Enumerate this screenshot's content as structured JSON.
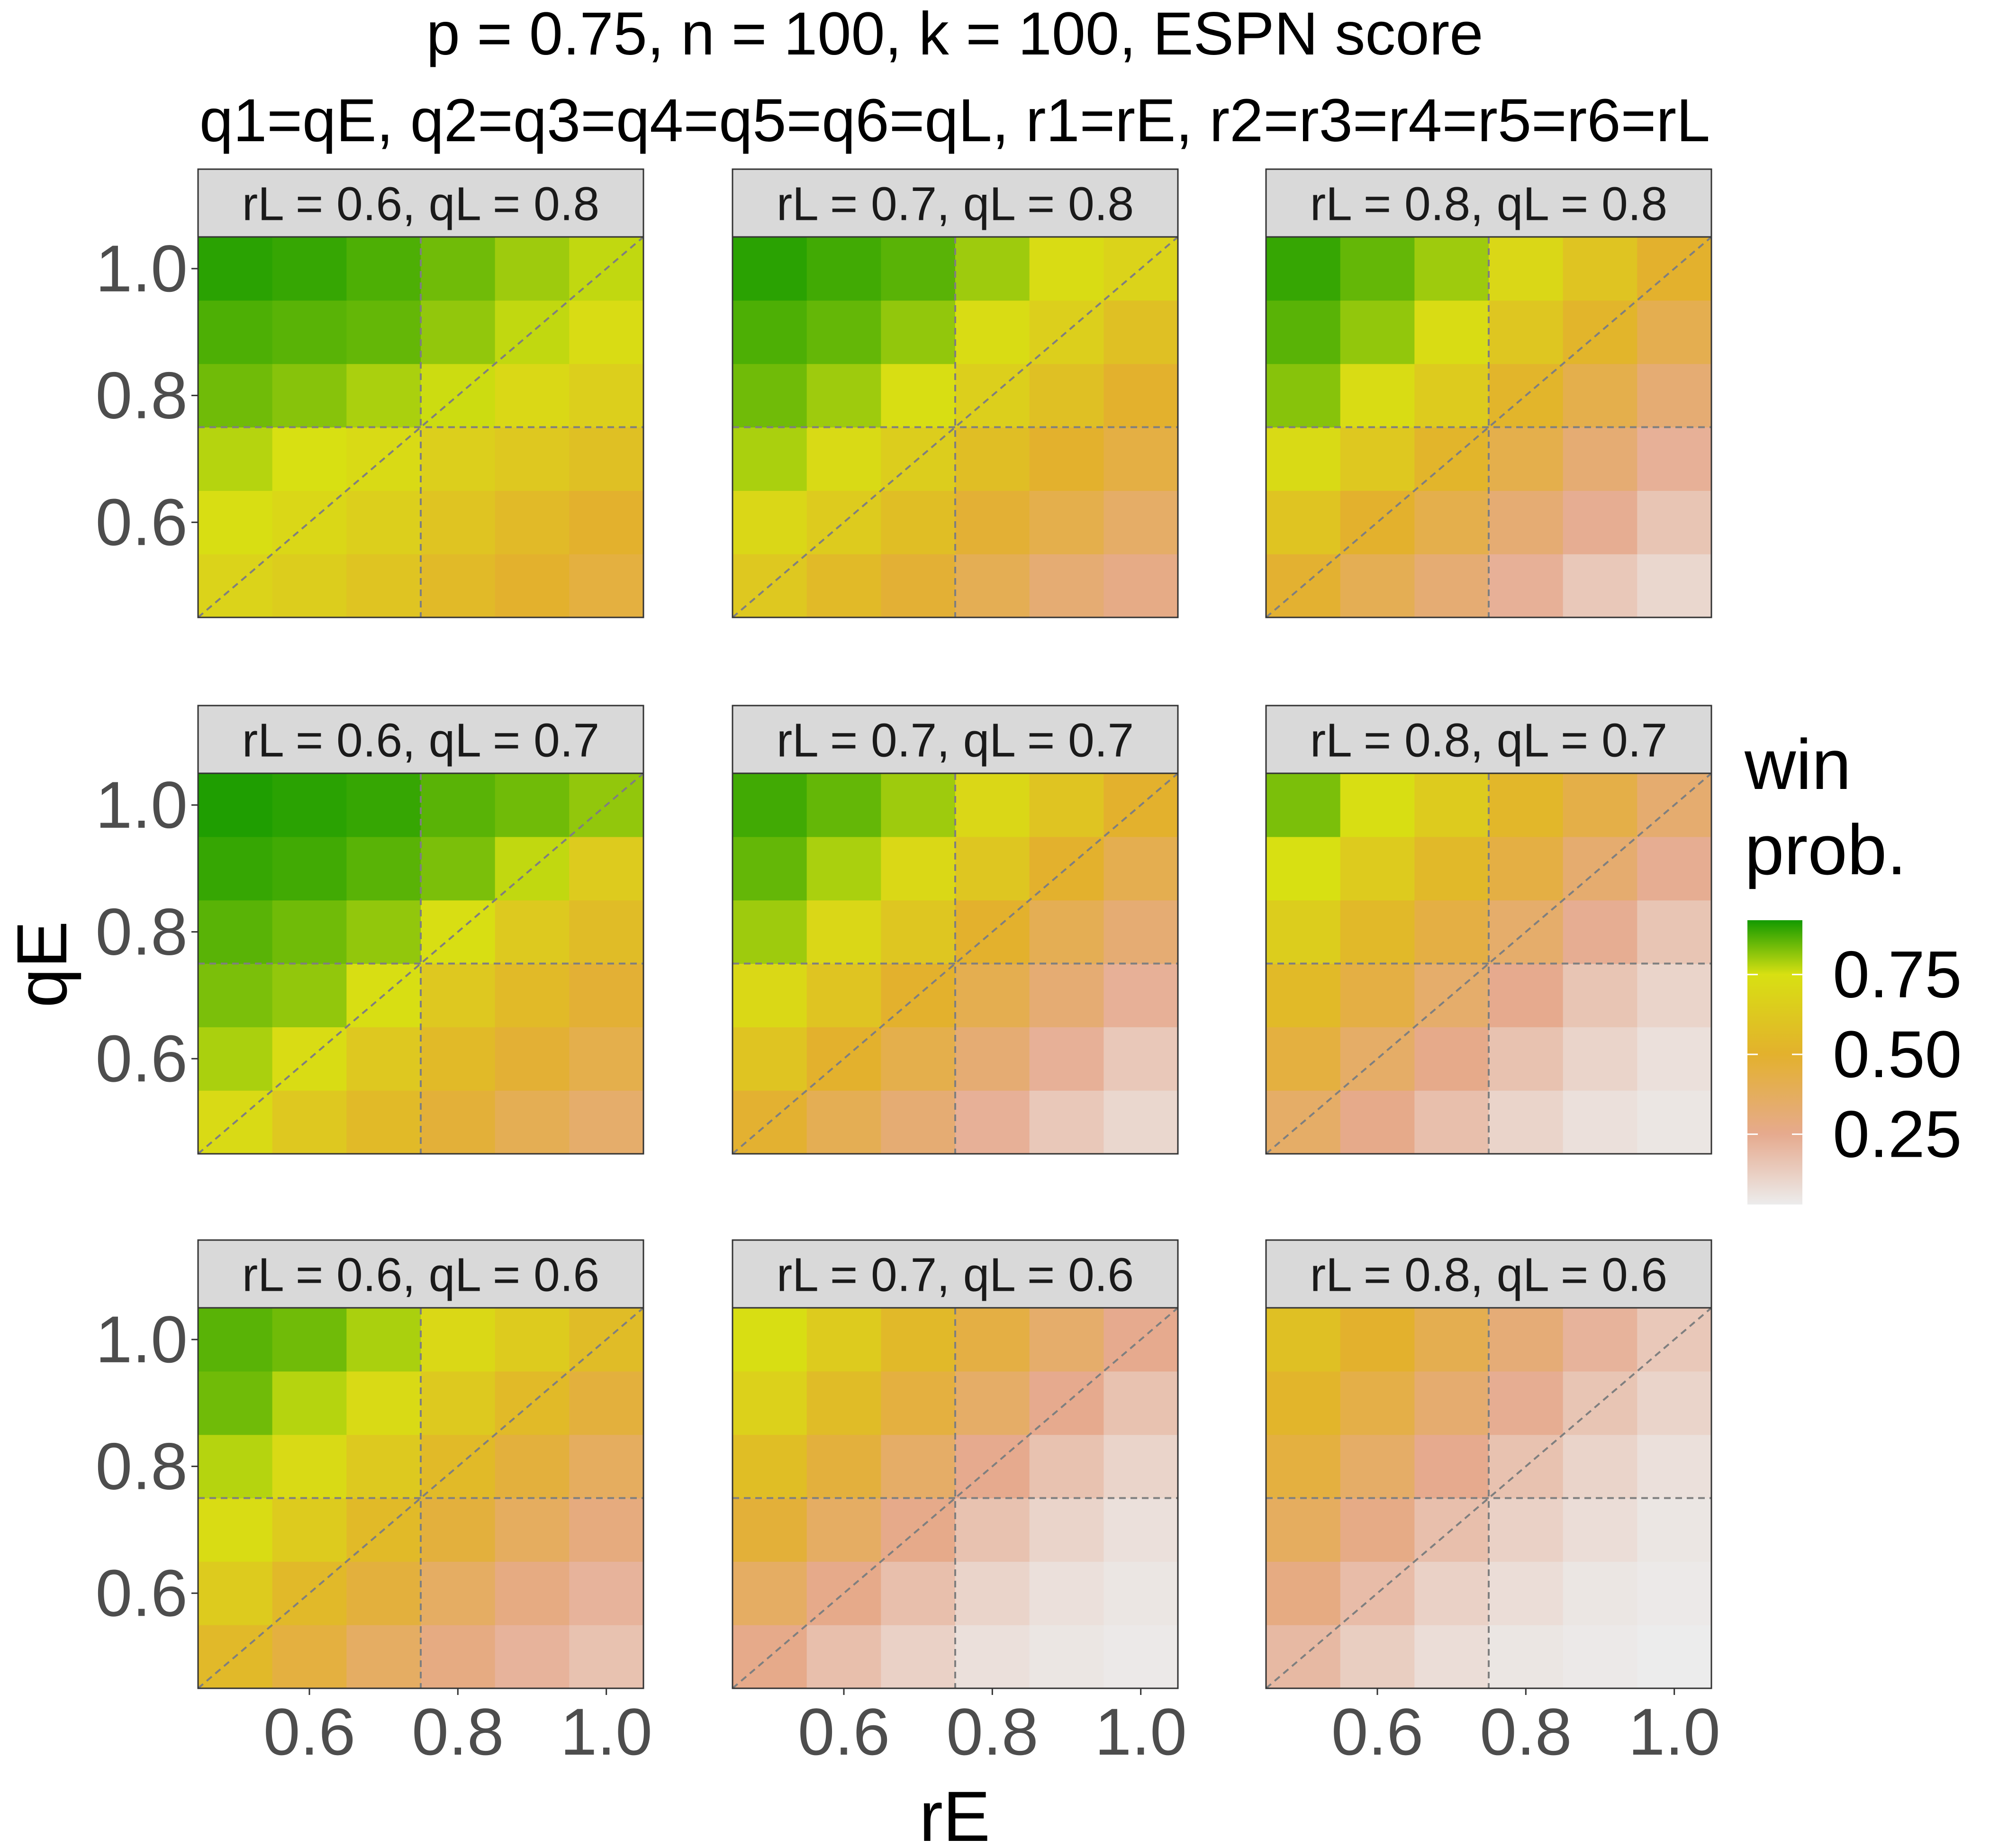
{
  "chart_data": {
    "type": "heatmap",
    "title_line1": "p = 0.75, n = 100, k = 100, ESPN score",
    "title_line2": "q1=qE,  q2=q3=q4=q5=q6=qL, r1=rE,  r2=r3=r4=r5=r6=rL",
    "xlabel": "rE",
    "ylabel": "qE",
    "x": [
      0.5,
      0.6,
      0.7,
      0.8,
      0.9,
      1.0
    ],
    "y": [
      0.5,
      0.6,
      0.7,
      0.8,
      0.9,
      1.0
    ],
    "xlim": [
      0.45,
      1.05
    ],
    "ylim": [
      0.45,
      1.05
    ],
    "x_ticks": [
      0.6,
      0.8,
      1.0
    ],
    "x_tick_labels": [
      "0.6",
      "0.8",
      "1.0"
    ],
    "y_ticks": [
      0.6,
      0.8,
      1.0
    ],
    "y_tick_labels": [
      "0.6",
      "0.8",
      "1.0"
    ],
    "reference_lines": {
      "vline_x": 0.75,
      "hline_y": 0.75,
      "diagonal": "y = x"
    },
    "grid": true,
    "legend": {
      "title_line1": "win",
      "title_line2": "prob.",
      "placement": "right",
      "ticks": [
        0.75,
        0.5,
        0.25
      ],
      "tick_labels": [
        "0.75",
        "0.50",
        "0.25"
      ],
      "range": [
        0.03,
        0.92
      ],
      "color_stops": [
        {
          "value": 0.03,
          "color": "#ececec"
        },
        {
          "value": 0.25,
          "color": "#e6aa8e"
        },
        {
          "value": 0.5,
          "color": "#e3b12d"
        },
        {
          "value": 0.75,
          "color": "#d8e012"
        },
        {
          "value": 0.92,
          "color": "#139a00"
        }
      ]
    },
    "facets": [
      {
        "label": "rL = 0.6, qL = 0.8",
        "values": [
          [
            0.68,
            0.65,
            0.6,
            0.55,
            0.5,
            0.45
          ],
          [
            0.74,
            0.7,
            0.66,
            0.6,
            0.55,
            0.5
          ],
          [
            0.78,
            0.75,
            0.72,
            0.66,
            0.62,
            0.58
          ],
          [
            0.84,
            0.82,
            0.79,
            0.76,
            0.71,
            0.66
          ],
          [
            0.87,
            0.86,
            0.85,
            0.81,
            0.77,
            0.73
          ],
          [
            0.9,
            0.89,
            0.87,
            0.84,
            0.8,
            0.77
          ]
        ]
      },
      {
        "label": "rL = 0.7, qL = 0.8",
        "values": [
          [
            0.62,
            0.55,
            0.48,
            0.4,
            0.32,
            0.27
          ],
          [
            0.7,
            0.64,
            0.57,
            0.48,
            0.42,
            0.35
          ],
          [
            0.79,
            0.72,
            0.65,
            0.57,
            0.5,
            0.44
          ],
          [
            0.84,
            0.8,
            0.74,
            0.66,
            0.58,
            0.5
          ],
          [
            0.87,
            0.85,
            0.81,
            0.73,
            0.66,
            0.58
          ],
          [
            0.9,
            0.88,
            0.86,
            0.8,
            0.73,
            0.68
          ]
        ]
      },
      {
        "label": "rL = 0.8, qL = 0.8",
        "values": [
          [
            0.49,
            0.4,
            0.32,
            0.23,
            0.15,
            0.1
          ],
          [
            0.6,
            0.5,
            0.42,
            0.32,
            0.24,
            0.16
          ],
          [
            0.72,
            0.62,
            0.52,
            0.42,
            0.32,
            0.23
          ],
          [
            0.82,
            0.73,
            0.64,
            0.52,
            0.42,
            0.32
          ],
          [
            0.86,
            0.81,
            0.73,
            0.61,
            0.52,
            0.41
          ],
          [
            0.89,
            0.85,
            0.8,
            0.7,
            0.6,
            0.5
          ]
        ]
      },
      {
        "label": "rL = 0.6, qL = 0.7",
        "values": [
          [
            0.72,
            0.62,
            0.55,
            0.47,
            0.4,
            0.34
          ],
          [
            0.79,
            0.73,
            0.62,
            0.55,
            0.48,
            0.42
          ],
          [
            0.83,
            0.81,
            0.74,
            0.62,
            0.55,
            0.48
          ],
          [
            0.86,
            0.84,
            0.81,
            0.74,
            0.63,
            0.56
          ],
          [
            0.89,
            0.88,
            0.86,
            0.83,
            0.77,
            0.64
          ],
          [
            0.91,
            0.9,
            0.89,
            0.86,
            0.84,
            0.81
          ]
        ]
      },
      {
        "label": "rL = 0.7, qL = 0.7",
        "values": [
          [
            0.49,
            0.4,
            0.32,
            0.23,
            0.15,
            0.1
          ],
          [
            0.6,
            0.5,
            0.42,
            0.32,
            0.23,
            0.15
          ],
          [
            0.71,
            0.6,
            0.5,
            0.41,
            0.32,
            0.23
          ],
          [
            0.8,
            0.7,
            0.61,
            0.5,
            0.4,
            0.32
          ],
          [
            0.85,
            0.79,
            0.71,
            0.61,
            0.5,
            0.41
          ],
          [
            0.88,
            0.85,
            0.8,
            0.7,
            0.6,
            0.5
          ]
        ]
      },
      {
        "label": "rL = 0.8, qL = 0.7",
        "values": [
          [
            0.35,
            0.26,
            0.18,
            0.11,
            0.07,
            0.05
          ],
          [
            0.45,
            0.35,
            0.26,
            0.17,
            0.11,
            0.07
          ],
          [
            0.55,
            0.44,
            0.34,
            0.25,
            0.16,
            0.11
          ],
          [
            0.65,
            0.54,
            0.44,
            0.34,
            0.24,
            0.16
          ],
          [
            0.75,
            0.64,
            0.54,
            0.44,
            0.33,
            0.24
          ],
          [
            0.83,
            0.74,
            0.64,
            0.53,
            0.43,
            0.33
          ]
        ]
      },
      {
        "label": "rL = 0.6, qL = 0.6",
        "values": [
          [
            0.54,
            0.45,
            0.36,
            0.28,
            0.22,
            0.17
          ],
          [
            0.64,
            0.54,
            0.46,
            0.36,
            0.28,
            0.22
          ],
          [
            0.73,
            0.64,
            0.55,
            0.46,
            0.37,
            0.29
          ],
          [
            0.78,
            0.72,
            0.63,
            0.55,
            0.46,
            0.37
          ],
          [
            0.84,
            0.78,
            0.72,
            0.63,
            0.55,
            0.46
          ],
          [
            0.86,
            0.84,
            0.79,
            0.71,
            0.64,
            0.56
          ]
        ]
      },
      {
        "label": "rL = 0.7, qL = 0.6",
        "values": [
          [
            0.26,
            0.18,
            0.12,
            0.07,
            0.05,
            0.04
          ],
          [
            0.36,
            0.26,
            0.18,
            0.11,
            0.07,
            0.05
          ],
          [
            0.47,
            0.36,
            0.26,
            0.17,
            0.11,
            0.07
          ],
          [
            0.57,
            0.46,
            0.35,
            0.25,
            0.17,
            0.11
          ],
          [
            0.67,
            0.56,
            0.45,
            0.35,
            0.25,
            0.17
          ],
          [
            0.74,
            0.64,
            0.54,
            0.44,
            0.34,
            0.25
          ]
        ]
      },
      {
        "label": "rL = 0.8, qL = 0.6",
        "values": [
          [
            0.2,
            0.13,
            0.08,
            0.05,
            0.04,
            0.03
          ],
          [
            0.28,
            0.19,
            0.12,
            0.08,
            0.05,
            0.04
          ],
          [
            0.37,
            0.27,
            0.18,
            0.12,
            0.08,
            0.05
          ],
          [
            0.45,
            0.35,
            0.25,
            0.17,
            0.11,
            0.07
          ],
          [
            0.52,
            0.43,
            0.33,
            0.24,
            0.16,
            0.11
          ],
          [
            0.58,
            0.5,
            0.41,
            0.31,
            0.22,
            0.15
          ]
        ]
      }
    ]
  }
}
